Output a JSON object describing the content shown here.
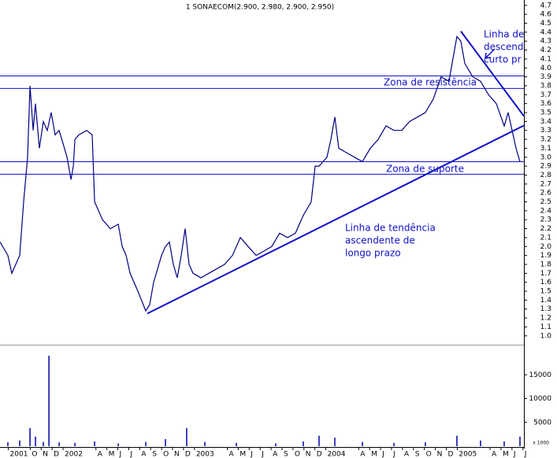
{
  "chart_data": [
    {
      "type": "line",
      "title": "1 SONAECOM(2.900, 2.980, 2.900, 2.950)",
      "annotations": [
        "Linha de",
        "descend",
        "curto pr",
        "Zona de resistência",
        "Zona de suporte",
        "Linha de tendência",
        "ascendente de",
        "longo prazo"
      ],
      "x": [
        -5.75,
        -5.04,
        -4.68,
        -4.32,
        -3.96,
        -3.6,
        -3.24,
        -3.02,
        -2.73,
        -2.52,
        -2.16,
        -1.8,
        -1.44,
        -1.08,
        -0.72,
        -0.36,
        0,
        0.36,
        0.72,
        0.94,
        1.08,
        1.44,
        2.16,
        2.66,
        2.88,
        3.24,
        3.6,
        4.32,
        5.04,
        5.4,
        5.76,
        6.12,
        6.83,
        7.55,
        7.91,
        8.27,
        8.63,
        8.99,
        9.35,
        9.71,
        10.07,
        10.43,
        10.79,
        11.15,
        11.51,
        11.87,
        12.59,
        13.31,
        14.03,
        14.75,
        15.47,
        16.19,
        16.91,
        17.63,
        18.35,
        19.06,
        19.78,
        20.5,
        21.22,
        21.94,
        22.66,
        23.02,
        23.38,
        23.74,
        24.1,
        24.46,
        24.82,
        25.18,
        25.9,
        26.62,
        27.34,
        28.06,
        28.78,
        29.5,
        30.22,
        30.94,
        31.65,
        32.37,
        33.09,
        33.81,
        34.53,
        35.25,
        35.61,
        35.97,
        36.33,
        36.69,
        37.41,
        38.13,
        38.85,
        39.57,
        40.29,
        40.65,
        41.01,
        41.37,
        41.73
      ],
      "series": [
        {
          "name": "SONAECOM",
          "color": "#000080",
          "values": [
            2.05,
            1.9,
            1.7,
            1.8,
            1.9,
            2.5,
            3.0,
            3.8,
            3.3,
            3.6,
            3.1,
            3.4,
            3.3,
            3.5,
            3.25,
            3.3,
            3.15,
            3.0,
            2.75,
            2.9,
            3.2,
            3.25,
            3.3,
            3.25,
            2.5,
            2.4,
            2.3,
            2.2,
            2.25,
            2.0,
            1.9,
            1.7,
            1.5,
            1.28,
            1.35,
            1.6,
            1.75,
            1.9,
            2.0,
            2.05,
            1.8,
            1.65,
            1.9,
            2.2,
            1.8,
            1.7,
            1.65,
            1.7,
            1.75,
            1.8,
            1.9,
            2.1,
            2.0,
            1.9,
            1.95,
            2.0,
            2.15,
            2.1,
            2.15,
            2.35,
            2.5,
            2.9,
            2.9,
            2.95,
            3.0,
            3.2,
            3.45,
            3.1,
            3.05,
            3.0,
            2.95,
            3.1,
            3.2,
            3.35,
            3.3,
            3.3,
            3.4,
            3.45,
            3.5,
            3.65,
            3.9,
            3.85,
            4.1,
            4.35,
            4.3,
            4.05,
            3.9,
            3.85,
            3.7,
            3.6,
            3.35,
            3.5,
            3.3,
            3.1,
            2.95
          ]
        }
      ],
      "hlines": [
        3.91,
        3.77,
        2.95,
        2.81
      ],
      "hline_color": "#1010c8",
      "trendlines": [
        {
          "x": [
            7.7,
            42.09
          ],
          "y": [
            1.25,
            3.355
          ]
        },
        {
          "x": [
            36.33,
            42.09
          ],
          "y": [
            4.41,
            3.46
          ]
        }
      ],
      "xlim": [
        -5.76,
        42.09
      ],
      "ylim": [
        0.91,
        4.76
      ],
      "yticks": [
        {
          "value": 1.0,
          "label": "1.0"
        },
        1.1,
        1.2,
        1.3,
        1.4,
        1.5,
        1.6,
        1.7,
        1.8,
        1.9,
        {
          "value": 2.0,
          "label": "2.0"
        },
        2.1,
        2.2,
        2.3,
        2.4,
        2.5,
        2.6,
        2.7,
        2.8,
        2.9,
        {
          "value": 3.0,
          "label": "3.0"
        },
        3.1,
        3.2,
        3.3,
        3.4,
        3.5,
        3.6,
        3.7,
        3.8,
        3.9,
        {
          "value": 4.0,
          "label": "4.0"
        },
        4.1,
        4.2,
        4.3,
        4.4,
        4.5,
        4.6,
        4.7
      ]
    },
    {
      "type": "bar",
      "unit_label": "x 1000",
      "x": [
        -5.04,
        -3.96,
        -3.02,
        -2.52,
        -1.8,
        -1.29,
        -0.36,
        1.08,
        2.88,
        5.04,
        7.55,
        9.35,
        11.29,
        12.95,
        15.83,
        19.42,
        21.94,
        23.38,
        24.82,
        27.34,
        30.22,
        33.09,
        35.97,
        38.13,
        40.29,
        41.73
      ],
      "series": [
        {
          "name": "Volume",
          "color": "#0000aa",
          "values": [
            800,
            1200,
            3800,
            2000,
            900,
            19000,
            800,
            700,
            1000,
            600,
            900,
            1500,
            3800,
            900,
            700,
            600,
            1000,
            2200,
            1800,
            900,
            700,
            800,
            2200,
            1200,
            1000,
            2000
          ]
        }
      ],
      "xlim": [
        -5.76,
        42.09
      ],
      "ylim": [
        0,
        21000
      ],
      "yticks": [
        5000,
        10000,
        15000
      ],
      "xticks": [
        {
          "value": -5,
          "label": "2001"
        },
        {
          "value": -3,
          "label": "O"
        },
        {
          "value": -2,
          "label": "N"
        },
        {
          "value": -1,
          "label": "D"
        },
        {
          "value": 0,
          "label": "2002"
        },
        {
          "value": 3,
          "label": "A"
        },
        {
          "value": 4,
          "label": "M"
        },
        {
          "value": 5,
          "label": "J"
        },
        {
          "value": 6,
          "label": "J"
        },
        {
          "value": 7,
          "label": "A"
        },
        {
          "value": 8,
          "label": "S"
        },
        {
          "value": 9,
          "label": "O"
        },
        {
          "value": 10,
          "label": "N"
        },
        {
          "value": 11,
          "label": "D"
        },
        {
          "value": 12,
          "label": "2003"
        },
        {
          "value": 15,
          "label": "A"
        },
        {
          "value": 16,
          "label": "M"
        },
        {
          "value": 17,
          "label": "J"
        },
        {
          "value": 18,
          "label": "J"
        },
        {
          "value": 19,
          "label": "A"
        },
        {
          "value": 20,
          "label": "S"
        },
        {
          "value": 21,
          "label": "O"
        },
        {
          "value": 22,
          "label": "N"
        },
        {
          "value": 23,
          "label": "D"
        },
        {
          "value": 24,
          "label": "2004"
        },
        {
          "value": 27,
          "label": "A"
        },
        {
          "value": 28,
          "label": "M"
        },
        {
          "value": 29,
          "label": "J"
        },
        {
          "value": 30,
          "label": "J"
        },
        {
          "value": 31,
          "label": "A"
        },
        {
          "value": 32,
          "label": "S"
        },
        {
          "value": 33,
          "label": "O"
        },
        {
          "value": 34,
          "label": "N"
        },
        {
          "value": 35,
          "label": "D"
        },
        {
          "value": 36,
          "label": "2005"
        },
        {
          "value": 39,
          "label": "A"
        },
        {
          "value": 40,
          "label": "M"
        },
        {
          "value": 41,
          "label": "J"
        },
        {
          "value": 42,
          "label": "J"
        }
      ]
    }
  ]
}
